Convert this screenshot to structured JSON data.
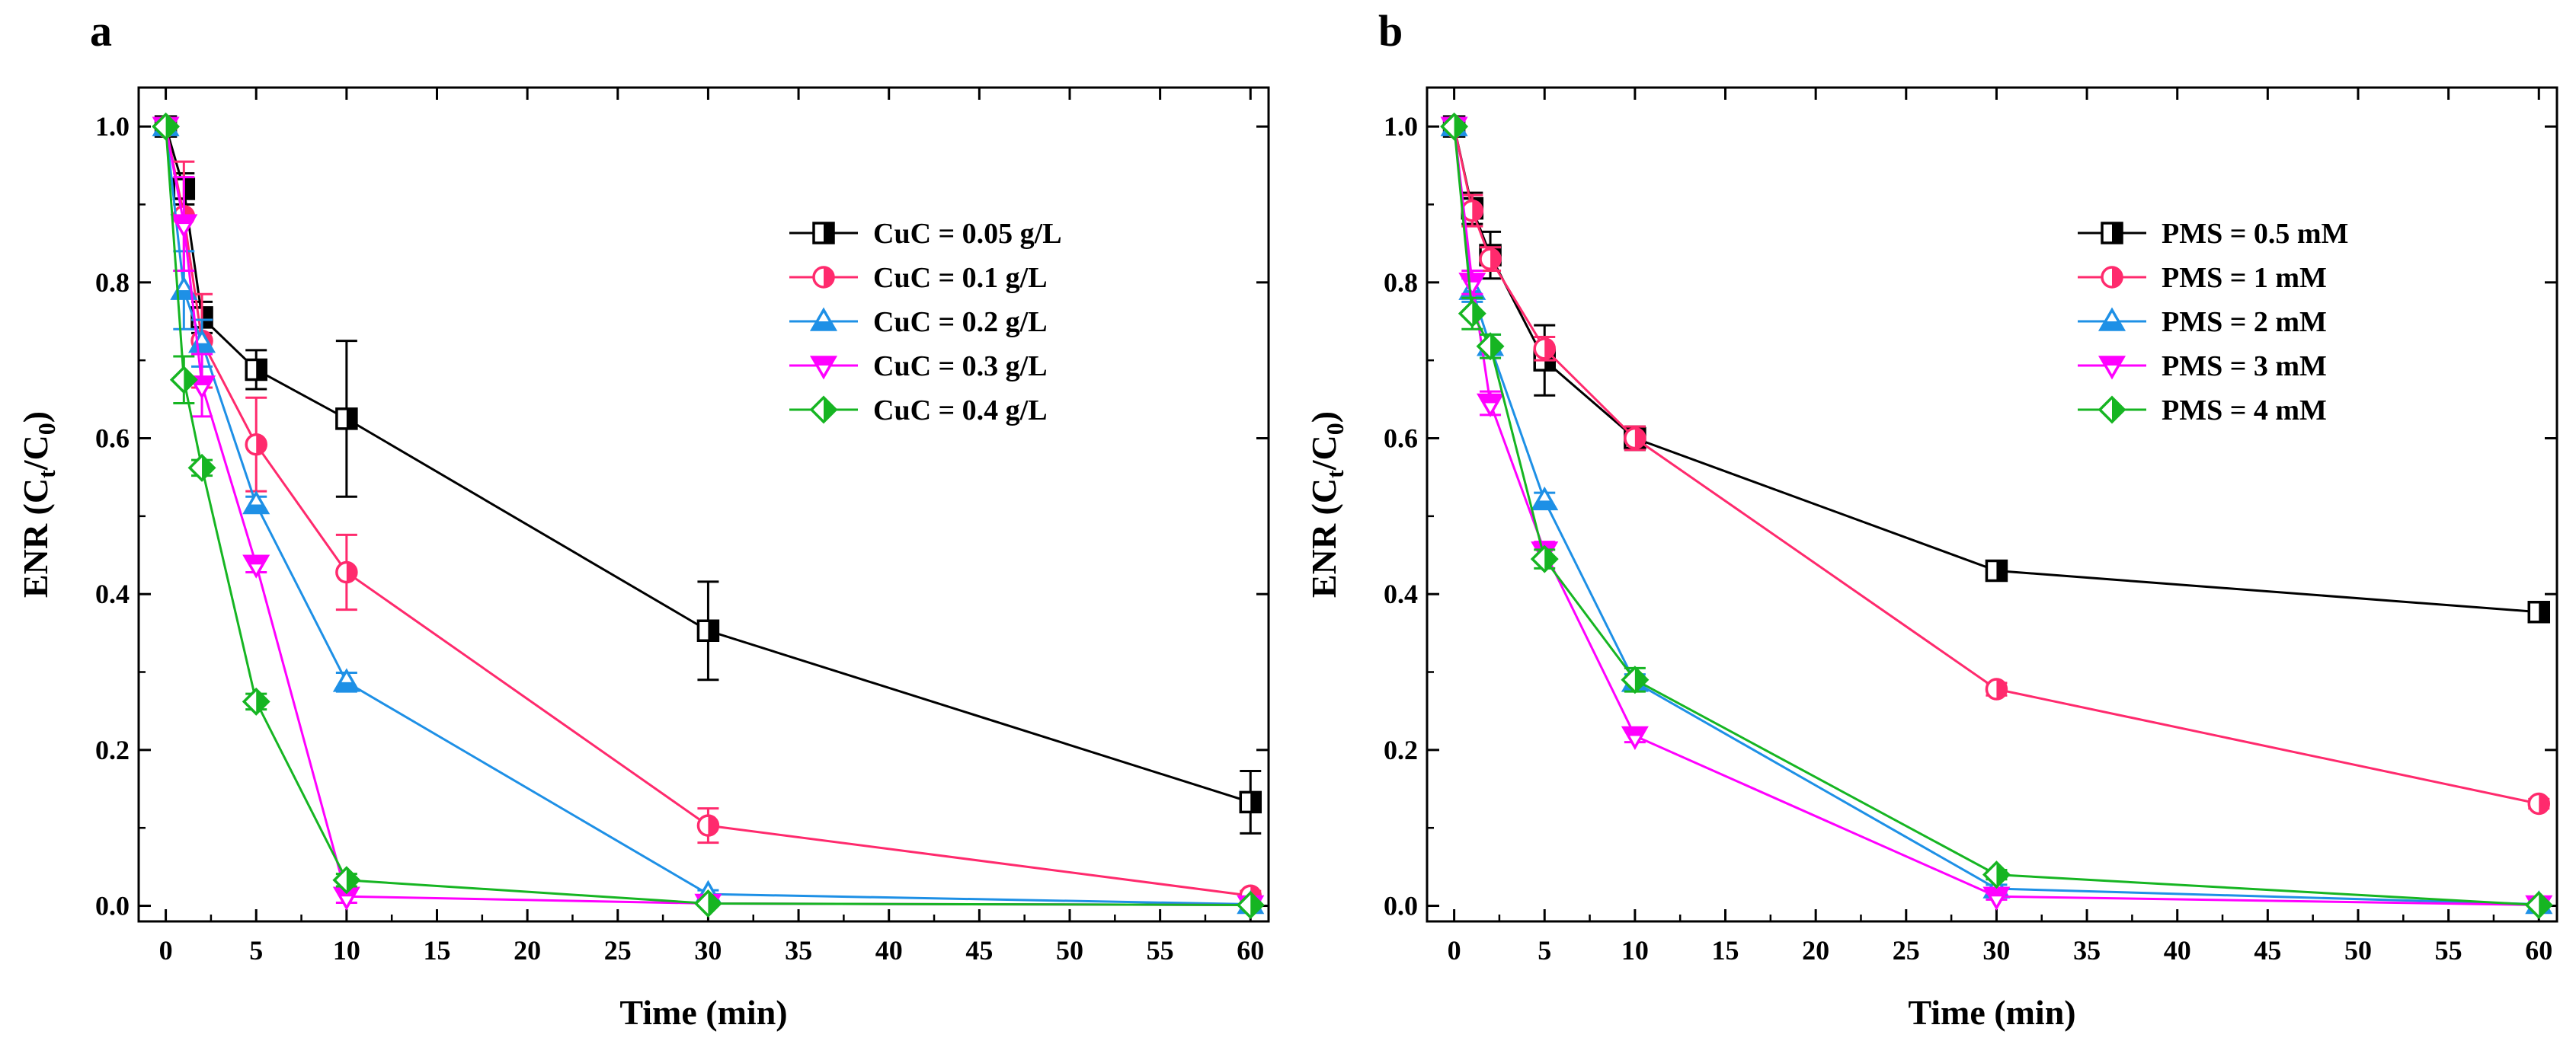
{
  "chart_data": [
    {
      "type": "line",
      "panel_label": "a",
      "xlabel": "Time (min)",
      "ylabel_main": "ENR (C",
      "ylabel_sub1": "t",
      "ylabel_mid": "/C",
      "ylabel_sub2": "0",
      "ylabel_end": ")",
      "xlim": [
        -1.5,
        61
      ],
      "ylim": [
        -0.02,
        1.05
      ],
      "xticks": [
        0,
        5,
        10,
        15,
        20,
        25,
        30,
        35,
        40,
        45,
        50,
        55,
        60
      ],
      "yticks": [
        "0.0",
        "0.2",
        "0.4",
        "0.6",
        "0.8",
        "1.0"
      ],
      "legend_position": "top-right",
      "x": [
        0,
        1,
        2,
        5,
        10,
        30,
        60
      ],
      "series": [
        {
          "name": "CuC = 0.05 g/L",
          "color": "#000000",
          "marker": "square",
          "values": [
            1.0,
            0.92,
            0.755,
            0.688,
            0.625,
            0.353,
            0.133
          ],
          "errors": [
            0.0,
            0.02,
            0.02,
            0.025,
            0.1,
            0.063,
            0.04
          ]
        },
        {
          "name": "CuC = 0.1 g/L",
          "color": "#ff2a6d",
          "marker": "circle",
          "values": [
            1.0,
            0.885,
            0.725,
            0.592,
            0.428,
            0.103,
            0.013
          ],
          "errors": [
            0.0,
            0.07,
            0.06,
            0.06,
            0.048,
            0.022,
            0.006
          ]
        },
        {
          "name": "CuC = 0.2 g/L",
          "color": "#1e90e6",
          "marker": "triangle-up",
          "values": [
            1.0,
            0.79,
            0.722,
            0.515,
            0.287,
            0.015,
            0.002
          ],
          "errors": [
            0.0,
            0.05,
            0.03,
            0.01,
            0.012,
            0.005,
            0.003
          ]
        },
        {
          "name": "CuC = 0.3 g/L",
          "color": "#ff00ff",
          "marker": "triangle-down",
          "values": [
            1.0,
            0.875,
            0.668,
            0.438,
            0.012,
            0.003,
            0.001
          ],
          "errors": [
            0.0,
            0.06,
            0.04,
            0.01,
            0.008,
            0.003,
            0.002
          ]
        },
        {
          "name": "CuC = 0.4 g/L",
          "color": "#16b522",
          "marker": "diamond",
          "values": [
            1.0,
            0.675,
            0.562,
            0.262,
            0.033,
            0.003,
            0.001
          ],
          "errors": [
            0.0,
            0.03,
            0.01,
            0.01,
            0.008,
            0.003,
            0.002
          ]
        }
      ]
    },
    {
      "type": "line",
      "panel_label": "b",
      "xlabel": "Time (min)",
      "ylabel_main": "ENR (C",
      "ylabel_sub1": "t",
      "ylabel_mid": "/C",
      "ylabel_sub2": "0",
      "ylabel_end": ")",
      "xlim": [
        -1.5,
        61
      ],
      "ylim": [
        -0.02,
        1.05
      ],
      "xticks": [
        0,
        5,
        10,
        15,
        20,
        25,
        30,
        35,
        40,
        45,
        50,
        55,
        60
      ],
      "yticks": [
        "0.0",
        "0.2",
        "0.4",
        "0.6",
        "0.8",
        "1.0"
      ],
      "legend_position": "top-right",
      "x": [
        0,
        1,
        2,
        5,
        10,
        30,
        60
      ],
      "series": [
        {
          "name": "PMS = 0.5 mM",
          "color": "#000000",
          "marker": "square",
          "values": [
            1.0,
            0.895,
            0.835,
            0.7,
            0.6,
            0.43,
            0.377
          ],
          "errors": [
            0.0,
            0.02,
            0.03,
            0.045,
            0.015,
            0.01,
            0.01
          ]
        },
        {
          "name": "PMS = 1 mM",
          "color": "#ff2a6d",
          "marker": "circle",
          "values": [
            1.0,
            0.892,
            0.83,
            0.715,
            0.6,
            0.278,
            0.131
          ],
          "errors": [
            0.0,
            0.02,
            0.015,
            0.015,
            0.015,
            0.008,
            0.006
          ]
        },
        {
          "name": "PMS = 2 mM",
          "color": "#1e90e6",
          "marker": "triangle-up",
          "values": [
            1.0,
            0.79,
            0.718,
            0.52,
            0.287,
            0.022,
            0.002
          ],
          "errors": [
            0.0,
            0.015,
            0.015,
            0.01,
            0.01,
            0.005,
            0.003
          ]
        },
        {
          "name": "PMS = 3 mM",
          "color": "#ff00ff",
          "marker": "triangle-down",
          "values": [
            1.0,
            0.8,
            0.645,
            0.455,
            0.218,
            0.012,
            0.001
          ],
          "errors": [
            0.0,
            0.015,
            0.015,
            0.012,
            0.008,
            0.004,
            0.002
          ]
        },
        {
          "name": "PMS = 4 mM",
          "color": "#16b522",
          "marker": "diamond",
          "values": [
            1.0,
            0.76,
            0.718,
            0.445,
            0.29,
            0.04,
            0.001
          ],
          "errors": [
            0.0,
            0.02,
            0.015,
            0.012,
            0.015,
            0.006,
            0.002
          ]
        }
      ]
    }
  ]
}
